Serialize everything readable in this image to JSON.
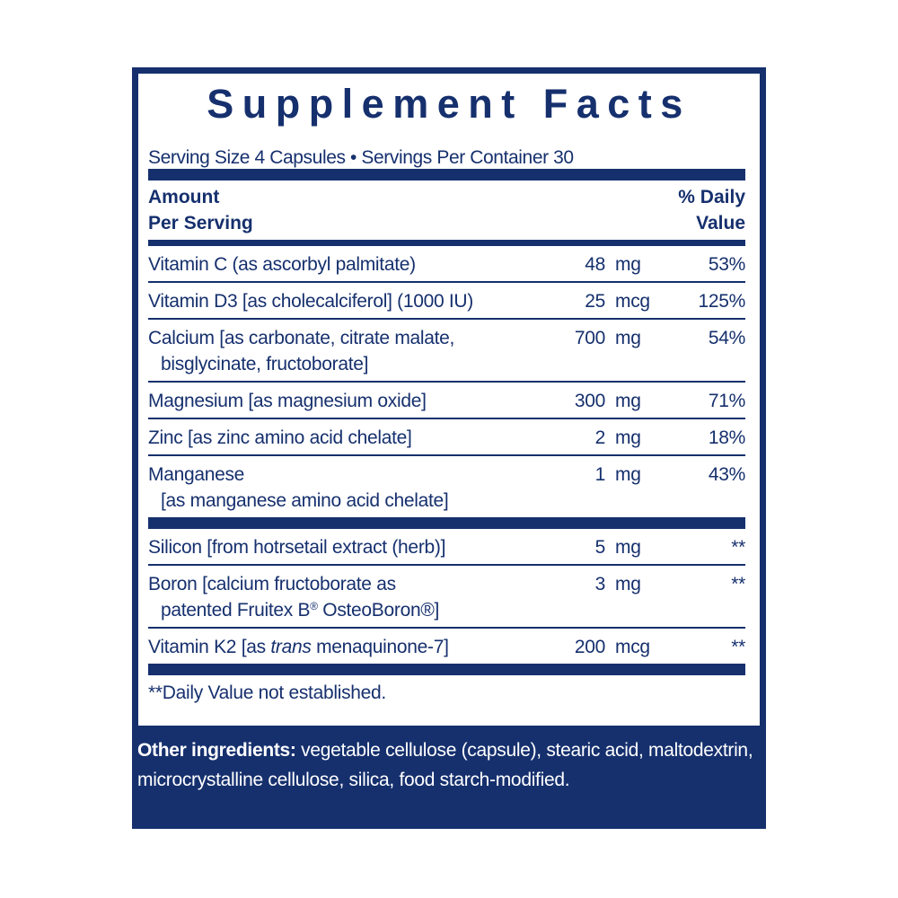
{
  "header": {
    "title": "Supplement Facts",
    "serving": "Serving Size 4 Capsules • Servings Per Container 30"
  },
  "columns": {
    "amount": [
      "Amount",
      "Per Serving"
    ],
    "dv": [
      "% Daily",
      "Value"
    ]
  },
  "groups": [
    [
      {
        "name": [
          [
            {
              "text": "Vitamin C (as ascorbyl palmitate)"
            }
          ]
        ],
        "amount": "48",
        "unit": "mg",
        "dv": "53%"
      },
      {
        "name": [
          [
            {
              "text": "Vitamin D3 [as cholecalciferol] (1000 IU)"
            }
          ]
        ],
        "amount": "25",
        "unit": "mcg",
        "dv": "125%"
      },
      {
        "name": [
          [
            {
              "text": "Calcium [as carbonate, citrate malate,"
            }
          ],
          [
            {
              "text": "bisglycinate, fructoborate]"
            }
          ]
        ],
        "amount": "700",
        "unit": "mg",
        "dv": "54%"
      },
      {
        "name": [
          [
            {
              "text": "Magnesium [as magnesium oxide]"
            }
          ]
        ],
        "amount": "300",
        "unit": "mg",
        "dv": "71%"
      },
      {
        "name": [
          [
            {
              "text": "Zinc [as zinc amino acid chelate]"
            }
          ]
        ],
        "amount": "2",
        "unit": "mg",
        "dv": "18%"
      },
      {
        "name": [
          [
            {
              "text": "Manganese"
            }
          ],
          [
            {
              "text": "[as manganese amino acid chelate]"
            }
          ]
        ],
        "amount": "1",
        "unit": "mg",
        "dv": "43%"
      }
    ],
    [
      {
        "name": [
          [
            {
              "text": "Silicon [from hotrsetail extract (herb)]"
            }
          ]
        ],
        "amount": "5",
        "unit": "mg",
        "dv": "**"
      },
      {
        "name": [
          [
            {
              "text": "Boron [calcium fructoborate as"
            }
          ],
          [
            {
              "text": "patented Fruitex B"
            },
            {
              "text": "®",
              "style": "sup"
            },
            {
              "text": " OsteoBoron®]"
            }
          ]
        ],
        "amount": "3",
        "unit": "mg",
        "dv": "**"
      },
      {
        "name": [
          [
            {
              "text": "Vitamin K2 [as "
            },
            {
              "text": "trans",
              "style": "italic"
            },
            {
              "text": " menaquinone-7]"
            }
          ]
        ],
        "amount": "200",
        "unit": "mcg",
        "dv": "**"
      }
    ]
  ],
  "footnote": "**Daily Value not established.",
  "other": {
    "label": "Other ingredients:",
    "text": " vegetable cellulose (capsule), stearic acid, maltodextrin, microcrystalline cellulose, silica, food starch-modified."
  }
}
